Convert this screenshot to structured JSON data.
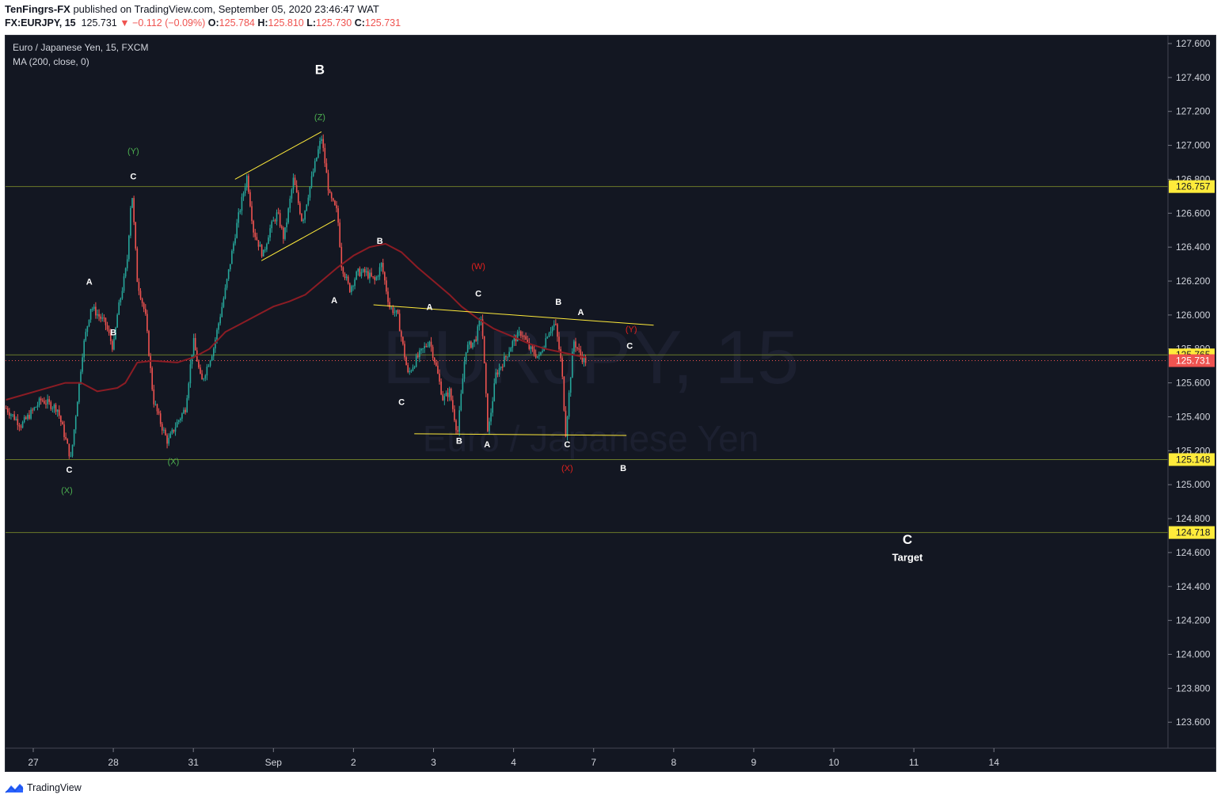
{
  "header": {
    "author": "TenFingrs-FX",
    "published_text": "published on TradingView.com, September 05, 2020 23:46:47 WAT",
    "symbol": "FX:EURJPY, 15",
    "last": "125.731",
    "change": "▼ −0.112 (−0.09%)",
    "o_label": "O:",
    "o_value": "125.784",
    "h_label": "H:",
    "h_value": "125.810",
    "l_label": "L:",
    "l_value": "125.730",
    "c_label": "C:",
    "c_value": "125.731"
  },
  "legend": {
    "title": "Euro / Japanese Yen, 15, FXCM",
    "indicator": "MA (200, close, 0)"
  },
  "watermark": {
    "symbol": "EURJPY, 15",
    "name": "Euro / Japanese Yen"
  },
  "footer": {
    "brand": "TradingView"
  },
  "colors": {
    "background": "#131722",
    "up": "#26a69a",
    "down": "#ef5350",
    "ma": "#8c1c24",
    "trendline": "#ffeb3b",
    "hline": "#6b7a2a",
    "label_yellow": "#ffeb3b",
    "label_red": "#ef5350",
    "wave_green": "#4caf50",
    "wave_red": "#e0201d"
  },
  "chart_data": {
    "type": "candlestick",
    "instrument": "EURJPY",
    "timeframe": "15",
    "grid": false,
    "y_axis": {
      "position": "right",
      "range": [
        123.4,
        127.7
      ],
      "ticks": [
        "127.600",
        "127.400",
        "127.200",
        "127.000",
        "126.800",
        "126.600",
        "126.400",
        "126.200",
        "126.000",
        "125.800",
        "125.600",
        "125.400",
        "125.200",
        "125.000",
        "124.800",
        "124.600",
        "124.400",
        "124.200",
        "124.000",
        "123.800",
        "123.600"
      ]
    },
    "x_axis": {
      "ticks": [
        {
          "label": "27",
          "x": 0
        },
        {
          "label": "28",
          "x": 1
        },
        {
          "label": "31",
          "x": 2
        },
        {
          "label": "Sep",
          "x": 3
        },
        {
          "label": "2",
          "x": 4
        },
        {
          "label": "3",
          "x": 5
        },
        {
          "label": "4",
          "x": 6
        },
        {
          "label": "7",
          "x": 7
        },
        {
          "label": "8",
          "x": 8
        },
        {
          "label": "9",
          "x": 9
        },
        {
          "label": "10",
          "x": 10
        },
        {
          "label": "11",
          "x": 11
        },
        {
          "label": "14",
          "x": 12
        }
      ]
    },
    "price_path": [
      [
        -0.34,
        125.45
      ],
      [
        -0.15,
        125.35
      ],
      [
        0.1,
        125.5
      ],
      [
        0.3,
        125.45
      ],
      [
        0.47,
        125.15
      ],
      [
        0.62,
        125.8
      ],
      [
        0.72,
        126.05
      ],
      [
        0.9,
        125.95
      ],
      [
        1.0,
        125.8
      ],
      [
        1.05,
        126.0
      ],
      [
        1.17,
        126.3
      ],
      [
        1.23,
        126.75
      ],
      [
        1.3,
        126.2
      ],
      [
        1.4,
        126.0
      ],
      [
        1.5,
        125.5
      ],
      [
        1.6,
        125.35
      ],
      [
        1.68,
        125.25
      ],
      [
        1.78,
        125.35
      ],
      [
        1.9,
        125.45
      ],
      [
        2.0,
        125.85
      ],
      [
        2.1,
        125.6
      ],
      [
        2.25,
        125.8
      ],
      [
        2.4,
        126.15
      ],
      [
        2.55,
        126.55
      ],
      [
        2.67,
        126.82
      ],
      [
        2.75,
        126.5
      ],
      [
        2.87,
        126.35
      ],
      [
        2.95,
        126.5
      ],
      [
        3.05,
        126.6
      ],
      [
        3.13,
        126.45
      ],
      [
        3.25,
        126.8
      ],
      [
        3.36,
        126.55
      ],
      [
        3.5,
        126.85
      ],
      [
        3.6,
        127.05
      ],
      [
        3.7,
        126.7
      ],
      [
        3.8,
        126.6
      ],
      [
        3.85,
        126.3
      ],
      [
        3.95,
        126.15
      ],
      [
        4.05,
        126.25
      ],
      [
        4.15,
        126.25
      ],
      [
        4.27,
        126.2
      ],
      [
        4.35,
        126.3
      ],
      [
        4.45,
        126.05
      ],
      [
        4.55,
        126.0
      ],
      [
        4.68,
        125.65
      ],
      [
        4.8,
        125.75
      ],
      [
        4.95,
        125.85
      ],
      [
        5.03,
        125.7
      ],
      [
        5.12,
        125.5
      ],
      [
        5.2,
        125.55
      ],
      [
        5.3,
        125.3
      ],
      [
        5.4,
        125.8
      ],
      [
        5.52,
        125.85
      ],
      [
        5.6,
        126.0
      ],
      [
        5.68,
        125.3
      ],
      [
        5.78,
        125.65
      ],
      [
        5.9,
        125.75
      ],
      [
        6.0,
        125.85
      ],
      [
        6.1,
        125.9
      ],
      [
        6.2,
        125.8
      ],
      [
        6.32,
        125.75
      ],
      [
        6.43,
        125.9
      ],
      [
        6.52,
        125.95
      ],
      [
        6.6,
        125.7
      ],
      [
        6.65,
        125.3
      ],
      [
        6.75,
        125.85
      ],
      [
        6.85,
        125.75
      ],
      [
        6.9,
        125.73
      ]
    ],
    "ma200_path": [
      [
        -0.34,
        125.5
      ],
      [
        0.4,
        125.6
      ],
      [
        0.6,
        125.6
      ],
      [
        0.8,
        125.55
      ],
      [
        1.05,
        125.57
      ],
      [
        1.15,
        125.6
      ],
      [
        1.3,
        125.72
      ],
      [
        1.5,
        125.73
      ],
      [
        1.8,
        125.72
      ],
      [
        2.0,
        125.75
      ],
      [
        2.2,
        125.8
      ],
      [
        2.4,
        125.9
      ],
      [
        2.6,
        125.95
      ],
      [
        2.8,
        126.0
      ],
      [
        3.0,
        126.05
      ],
      [
        3.2,
        126.08
      ],
      [
        3.4,
        126.12
      ],
      [
        3.6,
        126.2
      ],
      [
        3.8,
        126.28
      ],
      [
        4.0,
        126.35
      ],
      [
        4.2,
        126.4
      ],
      [
        4.4,
        126.42
      ],
      [
        4.6,
        126.37
      ],
      [
        4.8,
        126.28
      ],
      [
        5.0,
        126.2
      ],
      [
        5.2,
        126.12
      ],
      [
        5.35,
        126.05
      ],
      [
        5.55,
        125.98
      ],
      [
        5.75,
        125.92
      ],
      [
        6.0,
        125.87
      ],
      [
        6.2,
        125.83
      ],
      [
        6.4,
        125.8
      ],
      [
        6.6,
        125.78
      ],
      [
        6.9,
        125.75
      ]
    ],
    "horizontal_lines": [
      126.757,
      125.765,
      125.148,
      124.718
    ],
    "last_price_line": 125.731,
    "price_labels": [
      {
        "text": "126.757",
        "value": 126.757,
        "style": "yellow"
      },
      {
        "text": "125.765",
        "value": 125.765,
        "style": "yellow"
      },
      {
        "text": "125.731",
        "value": 125.731,
        "style": "red"
      },
      {
        "text": "125.148",
        "value": 125.148,
        "style": "yellow"
      },
      {
        "text": "124.718",
        "value": 124.718,
        "style": "yellow"
      }
    ],
    "trendlines": [
      {
        "x1": 2.52,
        "y1": 126.8,
        "x2": 3.6,
        "y2": 127.08
      },
      {
        "x1": 2.85,
        "y1": 126.32,
        "x2": 3.77,
        "y2": 126.56
      },
      {
        "x1": 4.25,
        "y1": 126.06,
        "x2": 7.75,
        "y2": 125.94
      },
      {
        "x1": 4.76,
        "y1": 125.3,
        "x2": 7.41,
        "y2": 125.29
      }
    ],
    "annotations": [
      {
        "text": "B",
        "x": 3.58,
        "y": 127.42,
        "color": "white",
        "size": "large"
      },
      {
        "text": "(Z)",
        "x": 3.58,
        "y": 127.15,
        "color": "green"
      },
      {
        "text": "(Y)",
        "x": 1.25,
        "y": 126.95,
        "color": "green"
      },
      {
        "text": "C",
        "x": 1.25,
        "y": 126.8,
        "color": "white"
      },
      {
        "text": "A",
        "x": 0.7,
        "y": 126.18,
        "color": "white"
      },
      {
        "text": "B",
        "x": 1.0,
        "y": 125.88,
        "color": "white"
      },
      {
        "text": "C",
        "x": 0.45,
        "y": 125.07,
        "color": "white"
      },
      {
        "text": "(X)",
        "x": 0.42,
        "y": 124.95,
        "color": "green"
      },
      {
        "text": "(X)",
        "x": 1.75,
        "y": 125.12,
        "color": "green"
      },
      {
        "text": "B",
        "x": 4.33,
        "y": 126.42,
        "color": "white"
      },
      {
        "text": "A",
        "x": 3.76,
        "y": 126.07,
        "color": "white"
      },
      {
        "text": "(W)",
        "x": 5.56,
        "y": 126.27,
        "color": "red"
      },
      {
        "text": "C",
        "x": 5.56,
        "y": 126.11,
        "color": "white"
      },
      {
        "text": "A",
        "x": 4.95,
        "y": 126.03,
        "color": "white"
      },
      {
        "text": "C",
        "x": 4.6,
        "y": 125.47,
        "color": "white"
      },
      {
        "text": "B",
        "x": 5.32,
        "y": 125.24,
        "color": "white"
      },
      {
        "text": "A",
        "x": 5.67,
        "y": 125.22,
        "color": "white"
      },
      {
        "text": "B",
        "x": 6.56,
        "y": 126.06,
        "color": "white"
      },
      {
        "text": "A",
        "x": 6.84,
        "y": 126.0,
        "color": "white"
      },
      {
        "text": "C",
        "x": 6.67,
        "y": 125.22,
        "color": "white"
      },
      {
        "text": "(X)",
        "x": 6.67,
        "y": 125.08,
        "color": "red"
      },
      {
        "text": "(Y)",
        "x": 7.47,
        "y": 125.9,
        "color": "red"
      },
      {
        "text": "C",
        "x": 7.45,
        "y": 125.8,
        "color": "white"
      },
      {
        "text": "B",
        "x": 7.37,
        "y": 125.08,
        "color": "white"
      },
      {
        "text": "C",
        "x": 10.92,
        "y": 124.65,
        "color": "white",
        "size": "large"
      },
      {
        "text": "Target",
        "x": 10.92,
        "y": 124.55,
        "color": "white"
      }
    ]
  }
}
